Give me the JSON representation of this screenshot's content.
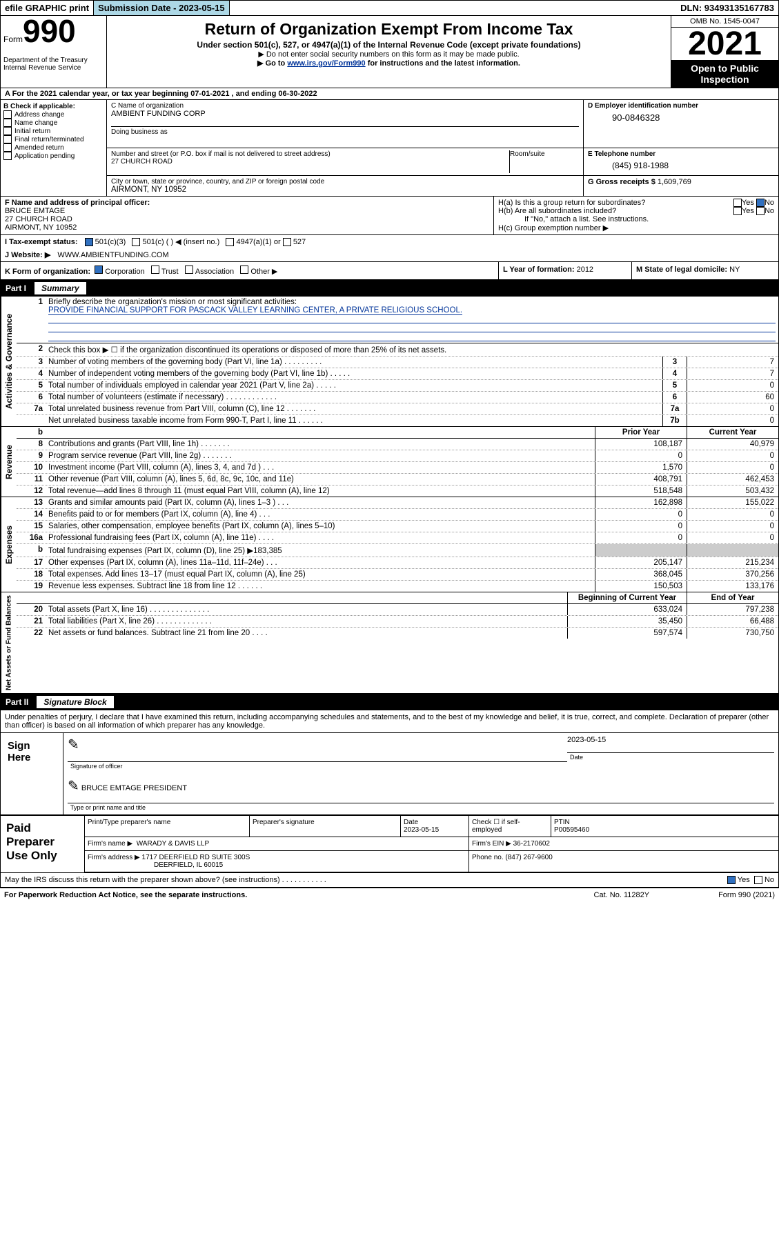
{
  "topbar": {
    "efile": "efile GRAPHIC print",
    "submission_label": "Submission Date - 2023-05-15",
    "dln_label": "DLN: 93493135167783"
  },
  "header": {
    "form_word": "Form",
    "form_num": "990",
    "dept": "Department of the Treasury\nInternal Revenue Service",
    "title": "Return of Organization Exempt From Income Tax",
    "sub1": "Under section 501(c), 527, or 4947(a)(1) of the Internal Revenue Code (except private foundations)",
    "sub2": "▶ Do not enter social security numbers on this form as it may be made public.",
    "sub3_pre": "▶ Go to ",
    "sub3_link": "www.irs.gov/Form990",
    "sub3_post": " for instructions and the latest information.",
    "omb": "OMB No. 1545-0047",
    "year": "2021",
    "open": "Open to Public Inspection"
  },
  "row_a": "A For the 2021 calendar year, or tax year beginning 07-01-2021   , and ending 06-30-2022",
  "b": {
    "hdr": "B Check if applicable:",
    "items": [
      "Address change",
      "Name change",
      "Initial return",
      "Final return/terminated",
      "Amended return",
      "Application pending"
    ]
  },
  "c": {
    "name_lbl": "C Name of organization",
    "name": "AMBIENT FUNDING CORP",
    "dba_lbl": "Doing business as",
    "addr_lbl": "Number and street (or P.O. box if mail is not delivered to street address)",
    "room_lbl": "Room/suite",
    "addr": "27 CHURCH ROAD",
    "city_lbl": "City or town, state or province, country, and ZIP or foreign postal code",
    "city": "AIRMONT, NY   10952"
  },
  "d": {
    "lbl": "D Employer identification number",
    "val": "90-0846328"
  },
  "e": {
    "lbl": "E Telephone number",
    "val": "(845) 918-1988"
  },
  "g": {
    "lbl": "G Gross receipts $",
    "val": "1,609,769"
  },
  "f": {
    "lbl": "F  Name and address of principal officer:",
    "name": "BRUCE EMTAGE",
    "addr1": "27 CHURCH ROAD",
    "addr2": "AIRMONT, NY   10952"
  },
  "h": {
    "ha": "H(a)  Is this a group return for subordinates?",
    "hb": "H(b)  Are all subordinates included?",
    "hb_note": "If \"No,\" attach a list. See instructions.",
    "hc": "H(c)  Group exemption number ▶"
  },
  "i": {
    "lbl": "I   Tax-exempt status:",
    "o1": "501(c)(3)",
    "o2": "501(c) (  ) ◀ (insert no.)",
    "o3": "4947(a)(1) or",
    "o4": "527"
  },
  "j": {
    "lbl": "J   Website: ▶",
    "val": "WWW.AMBIENTFUNDING.COM"
  },
  "k": {
    "lbl": "K Form of organization:",
    "o1": "Corporation",
    "o2": "Trust",
    "o3": "Association",
    "o4": "Other ▶"
  },
  "l": {
    "lbl": "L Year of formation:",
    "val": "2012"
  },
  "m": {
    "lbl": "M State of legal domicile:",
    "val": "NY"
  },
  "part1": {
    "label": "Part I",
    "title": "Summary"
  },
  "gov": {
    "vtab": "Activities & Governance",
    "l1_lbl": "Briefly describe the organization's mission or most significant activities:",
    "l1_val": "PROVIDE FINANCIAL SUPPORT FOR PASCACK VALLEY LEARNING CENTER, A PRIVATE RELIGIOUS SCHOOL.",
    "l2": "Check this box ▶ ☐  if the organization discontinued its operations or disposed of more than 25% of its net assets.",
    "rows": [
      {
        "n": "3",
        "d": "Number of voting members of the governing body (Part VI, line 1a)   .   .   .   .   .   .   .   .   .",
        "box": "3",
        "v": "7"
      },
      {
        "n": "4",
        "d": "Number of independent voting members of the governing body (Part VI, line 1b)   .   .   .   .   .",
        "box": "4",
        "v": "7"
      },
      {
        "n": "5",
        "d": "Total number of individuals employed in calendar year 2021 (Part V, line 2a)   .   .   .   .   .",
        "box": "5",
        "v": "0"
      },
      {
        "n": "6",
        "d": "Total number of volunteers (estimate if necessary)   .   .   .   .   .   .   .   .   .   .   .   .",
        "box": "6",
        "v": "60"
      },
      {
        "n": "7a",
        "d": "Total unrelated business revenue from Part VIII, column (C), line 12   .   .   .   .   .   .   .",
        "box": "7a",
        "v": "0"
      },
      {
        "n": "",
        "d": "Net unrelated business taxable income from Form 990-T, Part I, line 11   .   .   .   .   .   .",
        "box": "7b",
        "v": "0"
      }
    ]
  },
  "rev": {
    "vtab": "Revenue",
    "hdr_prior": "Prior Year",
    "hdr_curr": "Current Year",
    "rows": [
      {
        "n": "8",
        "d": "Contributions and grants (Part VIII, line 1h)   .   .   .   .   .   .   .",
        "p": "108,187",
        "c": "40,979"
      },
      {
        "n": "9",
        "d": "Program service revenue (Part VIII, line 2g)    .   .   .   .   .   .   .",
        "p": "0",
        "c": "0"
      },
      {
        "n": "10",
        "d": "Investment income (Part VIII, column (A), lines 3, 4, and 7d )   .   .   .",
        "p": "1,570",
        "c": "0"
      },
      {
        "n": "11",
        "d": "Other revenue (Part VIII, column (A), lines 5, 6d, 8c, 9c, 10c, and 11e)",
        "p": "408,791",
        "c": "462,453"
      },
      {
        "n": "12",
        "d": "Total revenue—add lines 8 through 11 (must equal Part VIII, column (A), line 12)",
        "p": "518,548",
        "c": "503,432"
      }
    ]
  },
  "exp": {
    "vtab": "Expenses",
    "rows": [
      {
        "n": "13",
        "d": "Grants and similar amounts paid (Part IX, column (A), lines 1–3 )   .   .   .",
        "p": "162,898",
        "c": "155,022"
      },
      {
        "n": "14",
        "d": "Benefits paid to or for members (Part IX, column (A), line 4)   .   .   .",
        "p": "0",
        "c": "0"
      },
      {
        "n": "15",
        "d": "Salaries, other compensation, employee benefits (Part IX, column (A), lines 5–10)",
        "p": "0",
        "c": "0"
      },
      {
        "n": "16a",
        "d": "Professional fundraising fees (Part IX, column (A), line 11e)   .   .   .   .",
        "p": "0",
        "c": "0"
      },
      {
        "n": "b",
        "d": "Total fundraising expenses (Part IX, column (D), line 25) ▶183,385",
        "p": "",
        "c": "",
        "gray": true
      },
      {
        "n": "17",
        "d": "Other expenses (Part IX, column (A), lines 11a–11d, 11f–24e)   .   .   .",
        "p": "205,147",
        "c": "215,234"
      },
      {
        "n": "18",
        "d": "Total expenses. Add lines 13–17 (must equal Part IX, column (A), line 25)",
        "p": "368,045",
        "c": "370,256"
      },
      {
        "n": "19",
        "d": "Revenue less expenses. Subtract line 18 from line 12   .   .   .   .   .   .",
        "p": "150,503",
        "c": "133,176"
      }
    ]
  },
  "net": {
    "vtab": "Net Assets or Fund Balances",
    "hdr_beg": "Beginning of Current Year",
    "hdr_end": "End of Year",
    "rows": [
      {
        "n": "20",
        "d": "Total assets (Part X, line 16)   .   .   .   .   .   .   .   .   .   .   .   .   .   .",
        "p": "633,024",
        "c": "797,238"
      },
      {
        "n": "21",
        "d": "Total liabilities (Part X, line 26)   .   .   .   .   .   .   .   .   .   .   .   .   .",
        "p": "35,450",
        "c": "66,488"
      },
      {
        "n": "22",
        "d": "Net assets or fund balances. Subtract line 21 from line 20   .   .   .   .",
        "p": "597,574",
        "c": "730,750"
      }
    ]
  },
  "part2": {
    "label": "Part II",
    "title": "Signature Block"
  },
  "penalties": "Under penalties of perjury, I declare that I have examined this return, including accompanying schedules and statements, and to the best of my knowledge and belief, it is true, correct, and complete. Declaration of preparer (other than officer) is based on all information of which preparer has any knowledge.",
  "sign": {
    "here": "Sign Here",
    "sig_lbl": "Signature of officer",
    "date_lbl": "Date",
    "date": "2023-05-15",
    "name": "BRUCE EMTAGE  PRESIDENT",
    "name_lbl": "Type or print name and title"
  },
  "paid": {
    "left": "Paid Preparer Use Only",
    "h1": "Print/Type preparer's name",
    "h2": "Preparer's signature",
    "h3_lbl": "Date",
    "h3": "2023-05-15",
    "h4": "Check ☐ if self-employed",
    "h5_lbl": "PTIN",
    "h5": "P00595460",
    "firm_name_lbl": "Firm's name      ▶",
    "firm_name": "WARADY & DAVIS LLP",
    "firm_ein_lbl": "Firm's EIN ▶",
    "firm_ein": "36-2170602",
    "firm_addr_lbl": "Firm's address ▶",
    "firm_addr": "1717 DEERFIELD RD SUITE 300S",
    "firm_addr2": "DEERFIELD, IL   60015",
    "phone_lbl": "Phone no.",
    "phone": "(847) 267-9600"
  },
  "discuss": "May the IRS discuss this return with the preparer shown above? (see instructions)   .   .   .   .   .   .   .   .   .   .   .",
  "footer": {
    "left": "For Paperwork Reduction Act Notice, see the separate instructions.",
    "mid": "Cat. No. 11282Y",
    "right": "Form 990 (2021)"
  },
  "yesno": {
    "yes": "Yes",
    "no": "No"
  }
}
